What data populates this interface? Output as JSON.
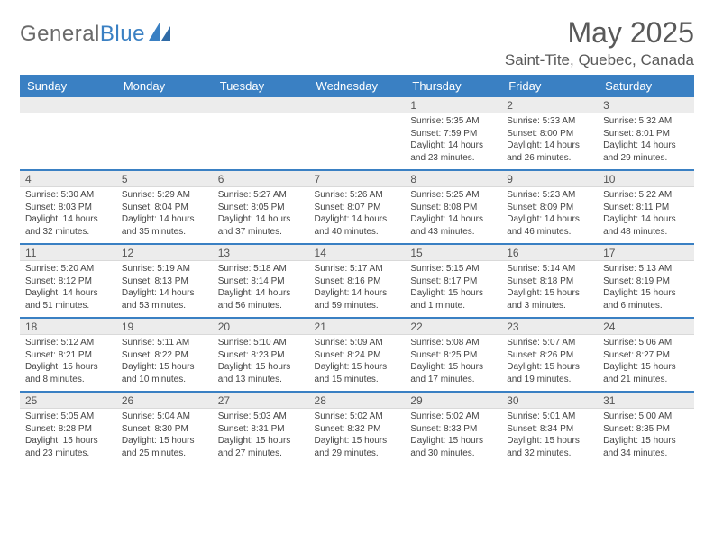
{
  "logo": {
    "word1": "General",
    "word2": "Blue"
  },
  "title": "May 2025",
  "location": "Saint-Tite, Quebec, Canada",
  "colors": {
    "header_bg": "#3a80c3",
    "header_text": "#ffffff",
    "daynum_bg": "#ececec",
    "row_divider": "#3a80c3",
    "page_bg": "#ffffff",
    "text": "#444444",
    "title_text": "#595959"
  },
  "typography": {
    "title_fontsize": 32,
    "location_fontsize": 17,
    "weekday_fontsize": 13,
    "daynum_fontsize": 12,
    "body_fontsize": 10
  },
  "weekdays": [
    "Sunday",
    "Monday",
    "Tuesday",
    "Wednesday",
    "Thursday",
    "Friday",
    "Saturday"
  ],
  "weeks": [
    [
      null,
      null,
      null,
      null,
      {
        "n": 1,
        "sunrise": "5:35 AM",
        "sunset": "7:59 PM",
        "daylight": "14 hours and 23 minutes."
      },
      {
        "n": 2,
        "sunrise": "5:33 AM",
        "sunset": "8:00 PM",
        "daylight": "14 hours and 26 minutes."
      },
      {
        "n": 3,
        "sunrise": "5:32 AM",
        "sunset": "8:01 PM",
        "daylight": "14 hours and 29 minutes."
      }
    ],
    [
      {
        "n": 4,
        "sunrise": "5:30 AM",
        "sunset": "8:03 PM",
        "daylight": "14 hours and 32 minutes."
      },
      {
        "n": 5,
        "sunrise": "5:29 AM",
        "sunset": "8:04 PM",
        "daylight": "14 hours and 35 minutes."
      },
      {
        "n": 6,
        "sunrise": "5:27 AM",
        "sunset": "8:05 PM",
        "daylight": "14 hours and 37 minutes."
      },
      {
        "n": 7,
        "sunrise": "5:26 AM",
        "sunset": "8:07 PM",
        "daylight": "14 hours and 40 minutes."
      },
      {
        "n": 8,
        "sunrise": "5:25 AM",
        "sunset": "8:08 PM",
        "daylight": "14 hours and 43 minutes."
      },
      {
        "n": 9,
        "sunrise": "5:23 AM",
        "sunset": "8:09 PM",
        "daylight": "14 hours and 46 minutes."
      },
      {
        "n": 10,
        "sunrise": "5:22 AM",
        "sunset": "8:11 PM",
        "daylight": "14 hours and 48 minutes."
      }
    ],
    [
      {
        "n": 11,
        "sunrise": "5:20 AM",
        "sunset": "8:12 PM",
        "daylight": "14 hours and 51 minutes."
      },
      {
        "n": 12,
        "sunrise": "5:19 AM",
        "sunset": "8:13 PM",
        "daylight": "14 hours and 53 minutes."
      },
      {
        "n": 13,
        "sunrise": "5:18 AM",
        "sunset": "8:14 PM",
        "daylight": "14 hours and 56 minutes."
      },
      {
        "n": 14,
        "sunrise": "5:17 AM",
        "sunset": "8:16 PM",
        "daylight": "14 hours and 59 minutes."
      },
      {
        "n": 15,
        "sunrise": "5:15 AM",
        "sunset": "8:17 PM",
        "daylight": "15 hours and 1 minute."
      },
      {
        "n": 16,
        "sunrise": "5:14 AM",
        "sunset": "8:18 PM",
        "daylight": "15 hours and 3 minutes."
      },
      {
        "n": 17,
        "sunrise": "5:13 AM",
        "sunset": "8:19 PM",
        "daylight": "15 hours and 6 minutes."
      }
    ],
    [
      {
        "n": 18,
        "sunrise": "5:12 AM",
        "sunset": "8:21 PM",
        "daylight": "15 hours and 8 minutes."
      },
      {
        "n": 19,
        "sunrise": "5:11 AM",
        "sunset": "8:22 PM",
        "daylight": "15 hours and 10 minutes."
      },
      {
        "n": 20,
        "sunrise": "5:10 AM",
        "sunset": "8:23 PM",
        "daylight": "15 hours and 13 minutes."
      },
      {
        "n": 21,
        "sunrise": "5:09 AM",
        "sunset": "8:24 PM",
        "daylight": "15 hours and 15 minutes."
      },
      {
        "n": 22,
        "sunrise": "5:08 AM",
        "sunset": "8:25 PM",
        "daylight": "15 hours and 17 minutes."
      },
      {
        "n": 23,
        "sunrise": "5:07 AM",
        "sunset": "8:26 PM",
        "daylight": "15 hours and 19 minutes."
      },
      {
        "n": 24,
        "sunrise": "5:06 AM",
        "sunset": "8:27 PM",
        "daylight": "15 hours and 21 minutes."
      }
    ],
    [
      {
        "n": 25,
        "sunrise": "5:05 AM",
        "sunset": "8:28 PM",
        "daylight": "15 hours and 23 minutes."
      },
      {
        "n": 26,
        "sunrise": "5:04 AM",
        "sunset": "8:30 PM",
        "daylight": "15 hours and 25 minutes."
      },
      {
        "n": 27,
        "sunrise": "5:03 AM",
        "sunset": "8:31 PM",
        "daylight": "15 hours and 27 minutes."
      },
      {
        "n": 28,
        "sunrise": "5:02 AM",
        "sunset": "8:32 PM",
        "daylight": "15 hours and 29 minutes."
      },
      {
        "n": 29,
        "sunrise": "5:02 AM",
        "sunset": "8:33 PM",
        "daylight": "15 hours and 30 minutes."
      },
      {
        "n": 30,
        "sunrise": "5:01 AM",
        "sunset": "8:34 PM",
        "daylight": "15 hours and 32 minutes."
      },
      {
        "n": 31,
        "sunrise": "5:00 AM",
        "sunset": "8:35 PM",
        "daylight": "15 hours and 34 minutes."
      }
    ]
  ],
  "labels": {
    "sunrise": "Sunrise: ",
    "sunset": "Sunset: ",
    "daylight": "Daylight: "
  }
}
